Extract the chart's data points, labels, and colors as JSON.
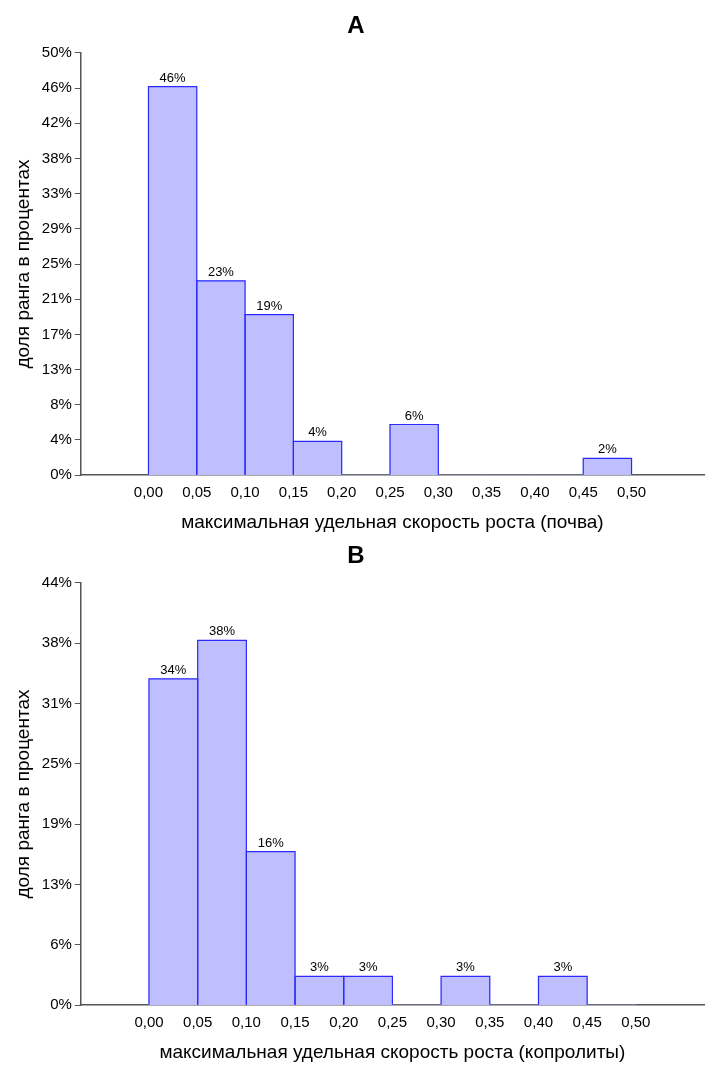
{
  "chart_data": [
    {
      "type": "histogram",
      "title": "A",
      "xlabel": "максимальная удельная скорость роста (почва)",
      "ylabel": "доля ранга в процентах",
      "color": "#bfbfff",
      "grid": false,
      "bins": [
        0,
        0.05,
        0.1,
        0.15,
        0.2,
        0.25,
        0.3,
        0.35,
        0.4,
        0.45,
        0.5
      ],
      "values": [
        46,
        23,
        19,
        4,
        0,
        6,
        0,
        0,
        0,
        2
      ],
      "value_labels": [
        "46%",
        "23%",
        "19%",
        "4%",
        null,
        "6%",
        null,
        null,
        null,
        "2%"
      ],
      "xlim": [
        -0.07,
        0.575
      ],
      "xticks": [
        {
          "value": 0,
          "label": "0,00"
        },
        {
          "value": 0.05,
          "label": "0,05"
        },
        {
          "value": 0.1,
          "label": "0,10"
        },
        {
          "value": 0.15,
          "label": "0,15"
        },
        {
          "value": 0.2,
          "label": "0,20"
        },
        {
          "value": 0.25,
          "label": "0,25"
        },
        {
          "value": 0.3,
          "label": "0,30"
        },
        {
          "value": 0.35,
          "label": "0,35"
        },
        {
          "value": 0.4,
          "label": "0,40"
        },
        {
          "value": 0.45,
          "label": "0,45"
        },
        {
          "value": 0.5,
          "label": "0,50"
        }
      ],
      "ylim": [
        0,
        50
      ],
      "yticks": [
        {
          "value": 0,
          "label": "0%"
        },
        {
          "value": 4.17,
          "label": "4%"
        },
        {
          "value": 8.33,
          "label": "8%"
        },
        {
          "value": 12.5,
          "label": "13%"
        },
        {
          "value": 16.67,
          "label": "17%"
        },
        {
          "value": 20.83,
          "label": "21%"
        },
        {
          "value": 25,
          "label": "25%"
        },
        {
          "value": 29.17,
          "label": "29%"
        },
        {
          "value": 33.33,
          "label": "33%"
        },
        {
          "value": 37.5,
          "label": "38%"
        },
        {
          "value": 41.67,
          "label": "42%"
        },
        {
          "value": 45.83,
          "label": "46%"
        },
        {
          "value": 50,
          "label": "50%"
        }
      ]
    },
    {
      "type": "histogram",
      "title": "B",
      "xlabel": "максимальная удельная скорость роста (копролиты)",
      "ylabel": "доля ранга в процентах",
      "color": "#bfbfff",
      "grid": false,
      "bins": [
        0,
        0.05,
        0.1,
        0.15,
        0.2,
        0.25,
        0.3,
        0.35,
        0.4,
        0.45,
        0.5
      ],
      "values": [
        34,
        38,
        16,
        3,
        3,
        0,
        3,
        0,
        3,
        0
      ],
      "value_labels": [
        "34%",
        "38%",
        "16%",
        "3%",
        "3%",
        null,
        "3%",
        null,
        "3%",
        null
      ],
      "xlim": [
        -0.07,
        0.57
      ],
      "xticks": [
        {
          "value": 0,
          "label": "0,00"
        },
        {
          "value": 0.05,
          "label": "0,05"
        },
        {
          "value": 0.1,
          "label": "0,10"
        },
        {
          "value": 0.15,
          "label": "0,15"
        },
        {
          "value": 0.2,
          "label": "0,20"
        },
        {
          "value": 0.25,
          "label": "0,25"
        },
        {
          "value": 0.3,
          "label": "0,30"
        },
        {
          "value": 0.35,
          "label": "0,35"
        },
        {
          "value": 0.4,
          "label": "0,40"
        },
        {
          "value": 0.45,
          "label": "0,45"
        },
        {
          "value": 0.5,
          "label": "0,50"
        }
      ],
      "ylim": [
        0,
        44
      ],
      "yticks": [
        {
          "value": 0,
          "label": "0%"
        },
        {
          "value": 6.29,
          "label": "6%"
        },
        {
          "value": 12.57,
          "label": "13%"
        },
        {
          "value": 18.86,
          "label": "19%"
        },
        {
          "value": 25.14,
          "label": "25%"
        },
        {
          "value": 31.43,
          "label": "31%"
        },
        {
          "value": 37.71,
          "label": "38%"
        },
        {
          "value": 44,
          "label": "44%"
        }
      ]
    }
  ]
}
